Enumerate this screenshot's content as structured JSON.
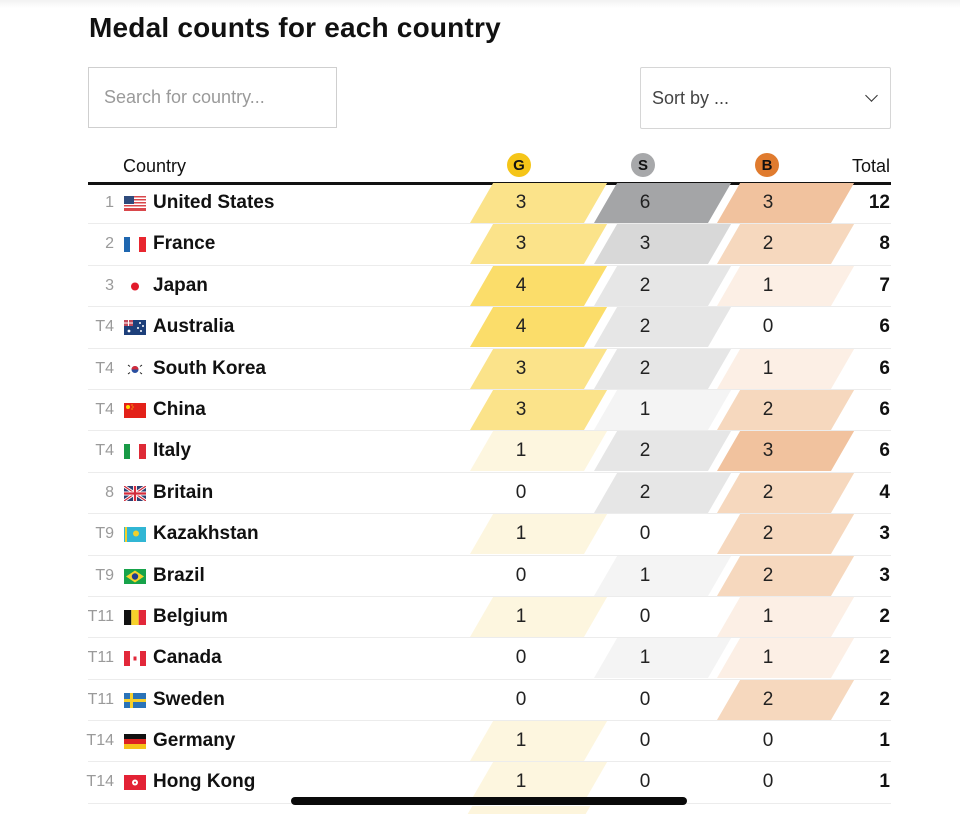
{
  "title": "Medal counts for each country",
  "search": {
    "placeholder": "Search for country...",
    "value": ""
  },
  "sort": {
    "label": "Sort by ..."
  },
  "columns": {
    "country": "Country",
    "gold": "G",
    "silver": "S",
    "bronze": "B",
    "total": "Total"
  },
  "colors": {
    "gold_badge": "#f5c518",
    "silver_badge": "#a7a8aa",
    "bronze_badge": "#e07b2e",
    "gold_scale": [
      "#ffffff",
      "#fdf6df",
      "#fcefbf",
      "#fbe38a",
      "#fbdd6a"
    ],
    "silver_scale": [
      "#ffffff",
      "#f4f4f4",
      "#e6e6e6",
      "#d8d8d8",
      "#cfcfcf",
      "#c4c4c4",
      "#a4a5a7"
    ],
    "bronze_scale": [
      "#ffffff",
      "#fcefe5",
      "#f6d8be",
      "#f1c29e"
    ]
  },
  "rows": [
    {
      "rank": "1",
      "country": "United States",
      "flag": "us",
      "gold": 3,
      "silver": 6,
      "bronze": 3,
      "total": 12
    },
    {
      "rank": "2",
      "country": "France",
      "flag": "fr",
      "gold": 3,
      "silver": 3,
      "bronze": 2,
      "total": 8
    },
    {
      "rank": "3",
      "country": "Japan",
      "flag": "jp",
      "gold": 4,
      "silver": 2,
      "bronze": 1,
      "total": 7
    },
    {
      "rank": "T4",
      "country": "Australia",
      "flag": "au",
      "gold": 4,
      "silver": 2,
      "bronze": 0,
      "total": 6
    },
    {
      "rank": "T4",
      "country": "South Korea",
      "flag": "kr",
      "gold": 3,
      "silver": 2,
      "bronze": 1,
      "total": 6
    },
    {
      "rank": "T4",
      "country": "China",
      "flag": "cn",
      "gold": 3,
      "silver": 1,
      "bronze": 2,
      "total": 6
    },
    {
      "rank": "T4",
      "country": "Italy",
      "flag": "it",
      "gold": 1,
      "silver": 2,
      "bronze": 3,
      "total": 6
    },
    {
      "rank": "8",
      "country": "Britain",
      "flag": "gb",
      "gold": 0,
      "silver": 2,
      "bronze": 2,
      "total": 4
    },
    {
      "rank": "T9",
      "country": "Kazakhstan",
      "flag": "kz",
      "gold": 1,
      "silver": 0,
      "bronze": 2,
      "total": 3
    },
    {
      "rank": "T9",
      "country": "Brazil",
      "flag": "br",
      "gold": 0,
      "silver": 1,
      "bronze": 2,
      "total": 3
    },
    {
      "rank": "T11",
      "country": "Belgium",
      "flag": "be",
      "gold": 1,
      "silver": 0,
      "bronze": 1,
      "total": 2
    },
    {
      "rank": "T11",
      "country": "Canada",
      "flag": "ca",
      "gold": 0,
      "silver": 1,
      "bronze": 1,
      "total": 2
    },
    {
      "rank": "T11",
      "country": "Sweden",
      "flag": "se",
      "gold": 0,
      "silver": 0,
      "bronze": 2,
      "total": 2
    },
    {
      "rank": "T14",
      "country": "Germany",
      "flag": "de",
      "gold": 1,
      "silver": 0,
      "bronze": 0,
      "total": 1
    },
    {
      "rank": "T14",
      "country": "Hong Kong",
      "flag": "hk",
      "gold": 1,
      "silver": 0,
      "bronze": 0,
      "total": 1
    }
  ]
}
